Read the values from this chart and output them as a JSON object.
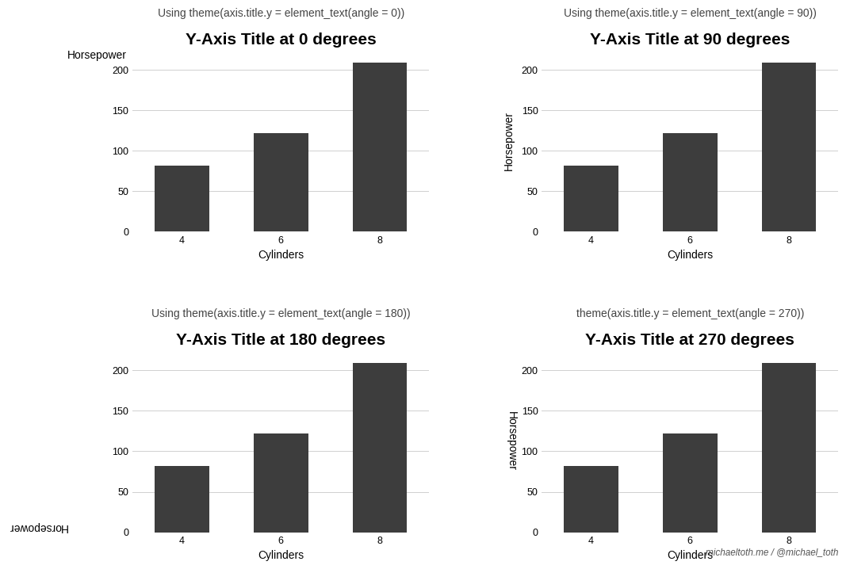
{
  "categories": [
    "4",
    "6",
    "8"
  ],
  "values": [
    82,
    122,
    209
  ],
  "bar_color": "#3d3d3d",
  "background_color": "#ffffff",
  "xlabel": "Cylinders",
  "ylabel": "Horsepower",
  "ylim": [
    0,
    225
  ],
  "yticks": [
    0,
    50,
    100,
    150,
    200
  ],
  "panels": [
    {
      "title": "Y-Axis Title at 0 degrees",
      "subtitle": "Using theme(axis.title.y = element_text(angle = 0))",
      "ylabel_angle": 0,
      "row": 0,
      "col": 0
    },
    {
      "title": "Y-Axis Title at 90 degrees",
      "subtitle": "Using theme(axis.title.y = element_text(angle = 90))",
      "ylabel_angle": 90,
      "row": 0,
      "col": 1
    },
    {
      "title": "Y-Axis Title at 180 degrees",
      "subtitle": "Using theme(axis.title.y = element_text(angle = 180))",
      "ylabel_angle": 180,
      "row": 1,
      "col": 0
    },
    {
      "title": "Y-Axis Title at 270 degrees",
      "subtitle": "theme(axis.title.y = element_text(angle = 270))",
      "ylabel_angle": 270,
      "row": 1,
      "col": 1
    }
  ],
  "title_fontsize": 15,
  "subtitle_fontsize": 10,
  "axis_label_fontsize": 10,
  "tick_fontsize": 9,
  "watermark": "michaeltoth.me / @michael_toth",
  "grid_color": "#d0d0d0",
  "grid_linewidth": 0.7
}
